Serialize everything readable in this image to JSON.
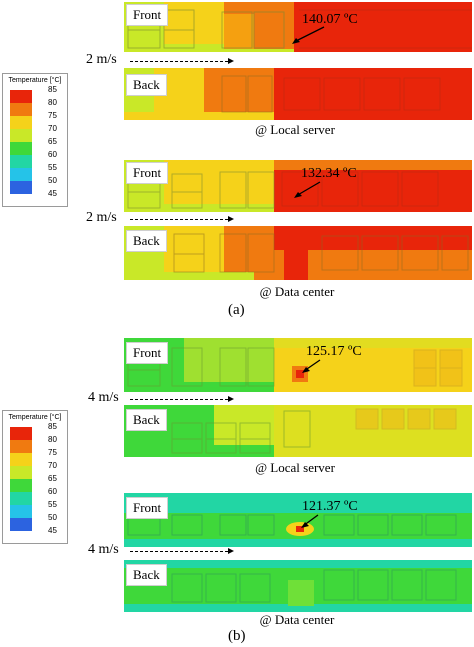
{
  "legend": {
    "title": "Temperature [°C]",
    "levels": [
      {
        "value": "85",
        "color": "#e8250a"
      },
      {
        "value": "80",
        "color": "#f07a10"
      },
      {
        "value": "75",
        "color": "#f5d21a"
      },
      {
        "value": "70",
        "color": "#c9e828"
      },
      {
        "value": "65",
        "color": "#3fd83a"
      },
      {
        "value": "60",
        "color": "#22d6a4"
      },
      {
        "value": "55",
        "color": "#25c3e8"
      },
      {
        "value": "50",
        "color": "#2c63e0"
      },
      {
        "value": "45",
        "color": "#ffffff"
      }
    ]
  },
  "case_a": {
    "local": {
      "front_label": "Front",
      "back_label": "Back",
      "speed": "2 m/s",
      "max_temp": "140.07 ºC",
      "caption": "@ Local server"
    },
    "datacenter": {
      "front_label": "Front",
      "back_label": "Back",
      "speed": "2 m/s",
      "max_temp": "132.34 ºC",
      "caption": "@ Data center"
    },
    "sub_label": "(a)"
  },
  "case_b": {
    "local": {
      "front_label": "Front",
      "back_label": "Back",
      "speed": "4 m/s",
      "max_temp": "125.17 ºC",
      "caption": "@ Local server"
    },
    "datacenter": {
      "front_label": "Front",
      "back_label": "Back",
      "speed": "4 m/s",
      "max_temp": "121.37 ºC",
      "caption": "@ Data center"
    },
    "sub_label": "(b)"
  }
}
